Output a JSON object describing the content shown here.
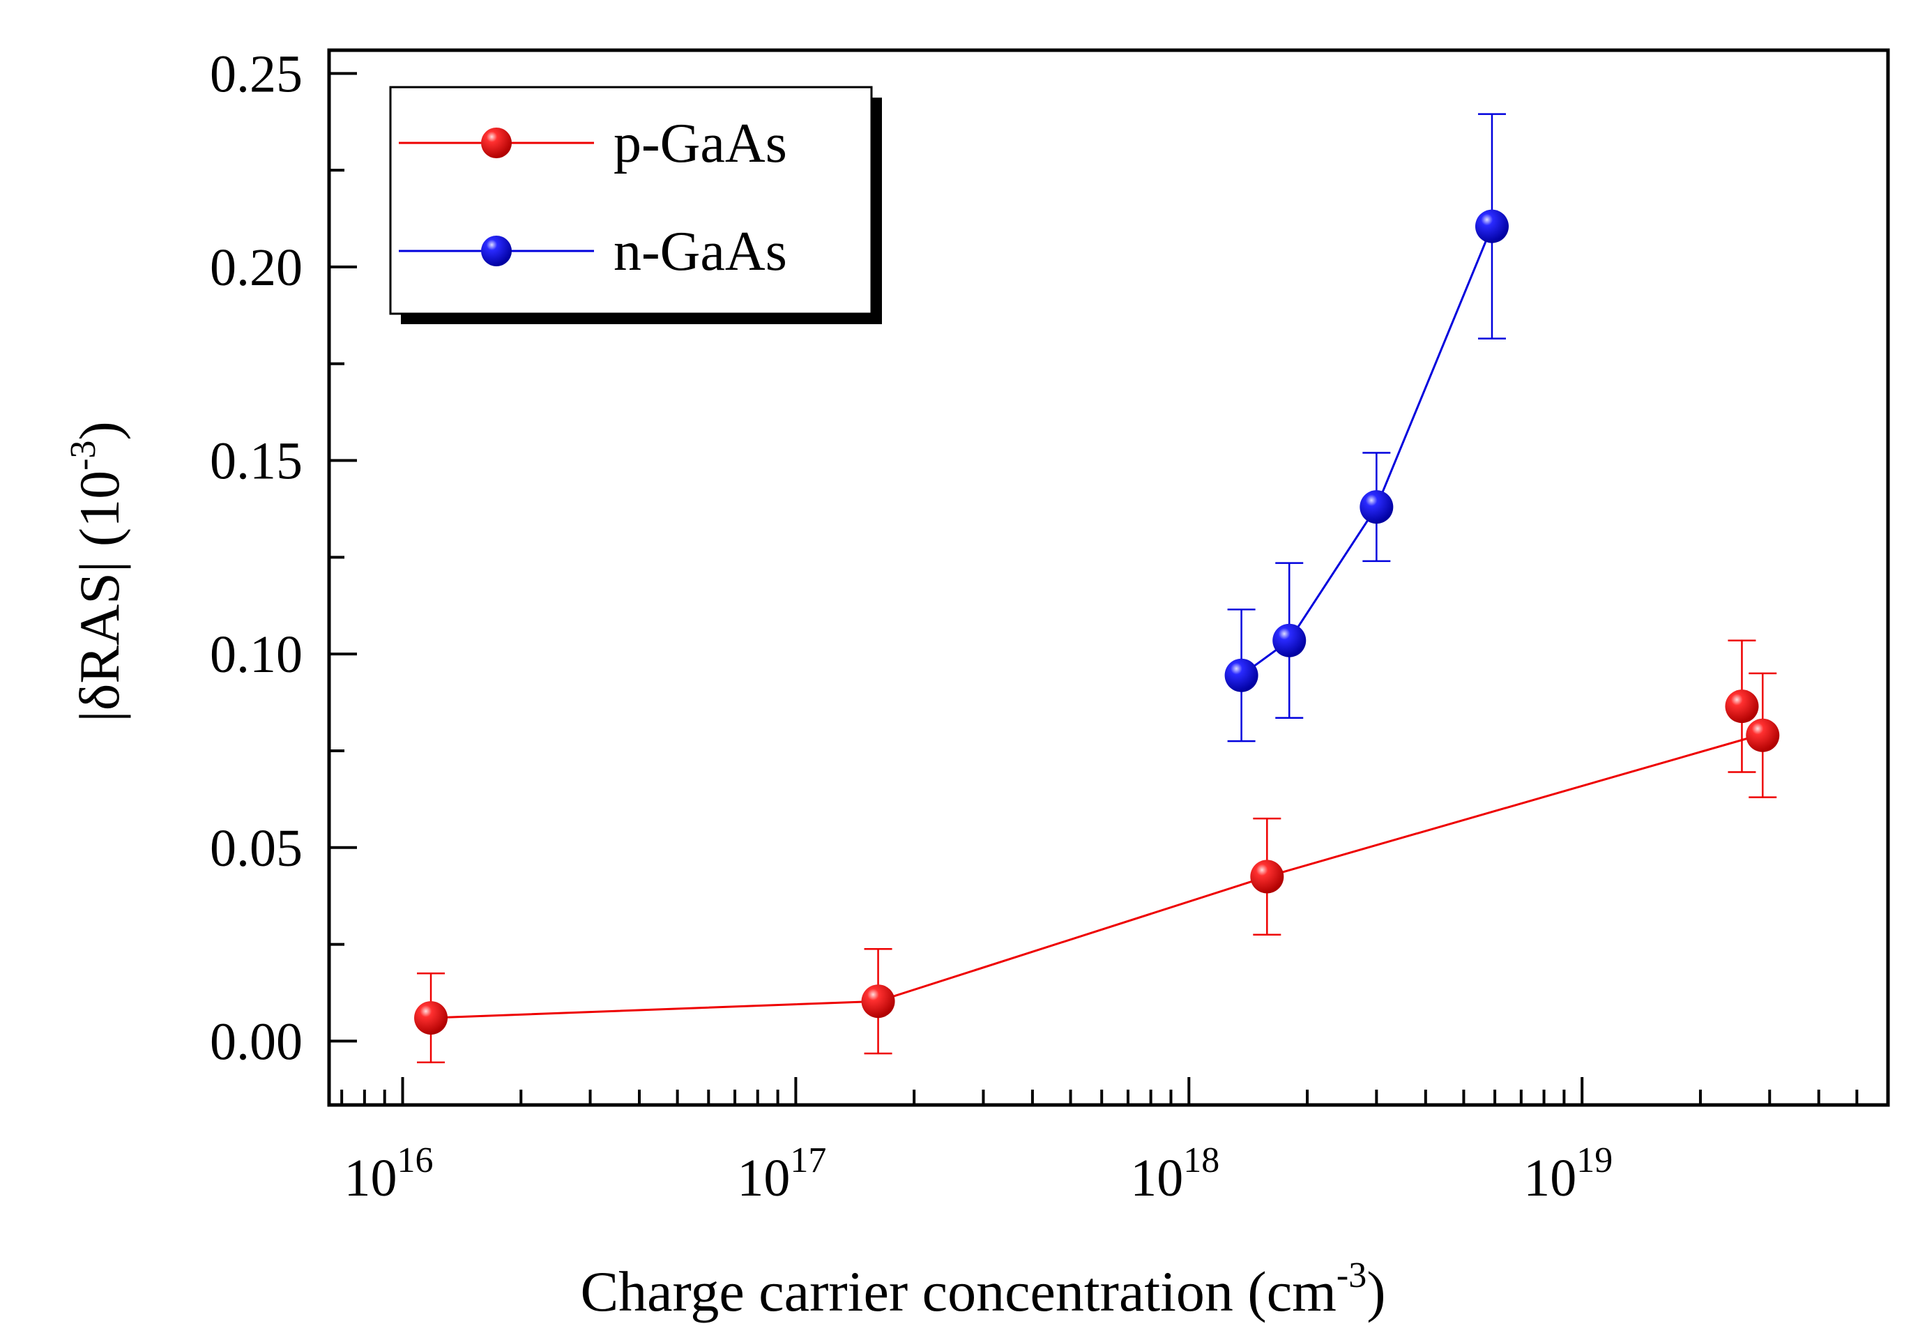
{
  "chart_data": {
    "type": "scatter",
    "title": "",
    "xlabel": "Charge carrier concentration (cm",
    "xlabel_sup": "-3",
    "xlabel_end": ")",
    "ylabel": "|δRAS| (10",
    "ylabel_sup": "-3",
    "ylabel_end": ")",
    "xscale": "log",
    "xlim": [
      6500000000000000.0,
      6e+19
    ],
    "ylim": [
      -0.0165,
      0.256
    ],
    "x_ticks": [
      {
        "value": 1e+16,
        "base": "10",
        "exp": "16"
      },
      {
        "value": 1e+17,
        "base": "10",
        "exp": "17"
      },
      {
        "value": 1e+18,
        "base": "10",
        "exp": "18"
      },
      {
        "value": 1e+19,
        "base": "10",
        "exp": "19"
      }
    ],
    "y_ticks": [
      {
        "value": 0.0,
        "label": "0.00"
      },
      {
        "value": 0.05,
        "label": "0.05"
      },
      {
        "value": 0.1,
        "label": "0.10"
      },
      {
        "value": 0.15,
        "label": "0.15"
      },
      {
        "value": 0.2,
        "label": "0.20"
      },
      {
        "value": 0.25,
        "label": "0.25"
      }
    ],
    "grid": false,
    "legend_position": "top-left",
    "series": [
      {
        "name": "p-GaAs",
        "color": "#ee0000",
        "marker_color": "#ee1111",
        "points": [
          {
            "x": 1.18e+16,
            "y": 0.006,
            "err": 0.0115
          },
          {
            "x": 1.62e+17,
            "y": 0.0103,
            "err": 0.0135
          },
          {
            "x": 1.58e+18,
            "y": 0.0425,
            "err": 0.015
          },
          {
            "x": 2.55e+19,
            "y": 0.0865,
            "err": 0.017
          },
          {
            "x": 2.88e+19,
            "y": 0.079,
            "err": 0.016
          }
        ],
        "line_points": [
          {
            "x": 1.18e+16,
            "y": 0.006
          },
          {
            "x": 1.62e+17,
            "y": 0.0103
          },
          {
            "x": 1.58e+18,
            "y": 0.0425
          },
          {
            "x": 2.7e+19,
            "y": 0.0785
          }
        ]
      },
      {
        "name": "n-GaAs",
        "color": "#0000dd",
        "marker_color": "#1111ee",
        "points": [
          {
            "x": 1.36e+18,
            "y": 0.0945,
            "err": 0.017
          },
          {
            "x": 1.8e+18,
            "y": 0.1035,
            "err": 0.02
          },
          {
            "x": 3e+18,
            "y": 0.138,
            "err": 0.014
          },
          {
            "x": 5.9e+18,
            "y": 0.2105,
            "err": 0.029
          }
        ],
        "line_points": [
          {
            "x": 1.36e+18,
            "y": 0.0945
          },
          {
            "x": 1.8e+18,
            "y": 0.1035
          },
          {
            "x": 3e+18,
            "y": 0.138
          },
          {
            "x": 5.9e+18,
            "y": 0.2105
          }
        ]
      }
    ]
  }
}
